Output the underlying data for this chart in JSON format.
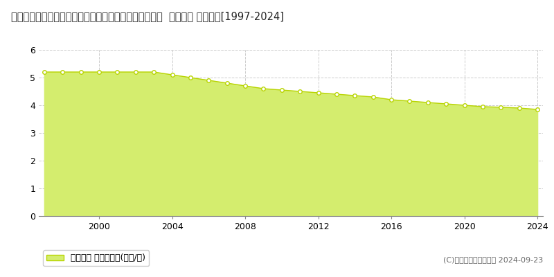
{
  "title": "宮崎県児湯郡都農町大字川北字都農中町４９０９番１内  基準地価 地価推移[1997-2024]",
  "years": [
    1997,
    1998,
    1999,
    2000,
    2001,
    2002,
    2003,
    2004,
    2005,
    2006,
    2007,
    2008,
    2009,
    2010,
    2011,
    2012,
    2013,
    2014,
    2015,
    2016,
    2017,
    2018,
    2019,
    2020,
    2021,
    2022,
    2023,
    2024
  ],
  "values": [
    5.2,
    5.2,
    5.2,
    5.2,
    5.2,
    5.2,
    5.2,
    5.1,
    5.0,
    4.9,
    4.8,
    4.7,
    4.6,
    4.55,
    4.5,
    4.45,
    4.4,
    4.35,
    4.3,
    4.2,
    4.15,
    4.1,
    4.05,
    4.0,
    3.95,
    3.93,
    3.9,
    3.85
  ],
  "fill_color": "#d4ed6e",
  "line_color": "#b8d400",
  "marker_facecolor": "#ffffff",
  "marker_edgecolor": "#b8d400",
  "ylim": [
    0,
    6
  ],
  "yticks": [
    0,
    1,
    2,
    3,
    4,
    5,
    6
  ],
  "xticks": [
    2000,
    2004,
    2008,
    2012,
    2016,
    2020,
    2024
  ],
  "grid_color": "#cccccc",
  "background_color": "#ffffff",
  "legend_label": "基準地価 平均坪単価(万円/坪)",
  "legend_square_color": "#d4ed6e",
  "legend_square_edge": "#b8d400",
  "copyright_text": "(C)土地価格ドットコム 2024-09-23",
  "title_fontsize": 10.5,
  "axis_fontsize": 9,
  "legend_fontsize": 9,
  "copyright_fontsize": 8
}
